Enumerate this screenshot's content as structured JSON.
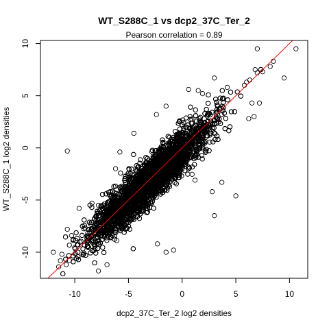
{
  "chart_data": {
    "type": "scatter",
    "title": "WT_S288C_1 vs dcp2_37C_Ter_2",
    "subtitle": "Pearson correlation =  0.89",
    "xlabel": "dcp2_37C_Ter_2 log2 densities",
    "ylabel": "WT_S288C_1 log2 densities",
    "xlim": [
      -13.2,
      11.7
    ],
    "ylim": [
      -12.5,
      10.3
    ],
    "xticks": [
      -10,
      -5,
      0,
      5,
      10
    ],
    "yticks": [
      -10,
      -5,
      0,
      5,
      10
    ],
    "xtick_labels": [
      "-10",
      "-5",
      "0",
      "5",
      "10"
    ],
    "ytick_labels": [
      "-10",
      "-5",
      "0",
      "5",
      "10"
    ],
    "grid": false,
    "reference_line": {
      "slope": 1,
      "intercept": 0,
      "color": "#ff0000"
    },
    "series": [
      {
        "marker": "open-circle",
        "color": "#000000",
        "points_estimated_count": 7500,
        "trend_slope": 0.95,
        "trend_intercept": -0.3,
        "spread_sd": 1.05,
        "points": [
          [
            10.6,
            9.5
          ],
          [
            7.0,
            9.5
          ],
          [
            8.5,
            8.3
          ],
          [
            8.2,
            7.8
          ],
          [
            6.8,
            7.5
          ],
          [
            7.5,
            7.3
          ],
          [
            7.0,
            7.2
          ],
          [
            9.5,
            6.7
          ],
          [
            3.0,
            6.7
          ],
          [
            6.3,
            6.5
          ],
          [
            6.0,
            6.3
          ],
          [
            5.8,
            6.0
          ],
          [
            4.2,
            5.8
          ],
          [
            1.5,
            5.5
          ],
          [
            0.6,
            5.6
          ],
          [
            1.9,
            5.2
          ],
          [
            7.2,
            4.3
          ],
          [
            6.5,
            4.3
          ],
          [
            6.7,
            3.0
          ],
          [
            6.2,
            2.8
          ],
          [
            -10.7,
            -0.3
          ],
          [
            -1.5,
            4.0
          ],
          [
            -2.4,
            3.2
          ],
          [
            -4.5,
            1.4
          ],
          [
            -5.8,
            -0.4
          ],
          [
            -6.2,
            -2.0
          ],
          [
            -9.6,
            -5.8
          ],
          [
            -8.4,
            -5.3
          ],
          [
            -7.8,
            -5.5
          ],
          [
            5.0,
            -4.6
          ],
          [
            3.0,
            -6.5
          ],
          [
            2.8,
            -4.2
          ],
          [
            3.7,
            -3.3
          ],
          [
            1.2,
            -3.1
          ],
          [
            -0.8,
            -9.8
          ],
          [
            -1.5,
            -10.0
          ],
          [
            -2.3,
            -9.2
          ],
          [
            -7.0,
            -11.2
          ],
          [
            -7.8,
            -11.8
          ],
          [
            -11.5,
            -11.4
          ],
          [
            -10.8,
            -11.2
          ],
          [
            -10.5,
            -10.8
          ],
          [
            -12.0,
            -10.0
          ],
          [
            -11.2,
            -10.2
          ],
          [
            -10.7,
            -7.8
          ],
          [
            -10.3,
            -8.4
          ],
          [
            -9.7,
            -9.3
          ],
          [
            -8.8,
            -9.5
          ]
        ]
      }
    ]
  }
}
